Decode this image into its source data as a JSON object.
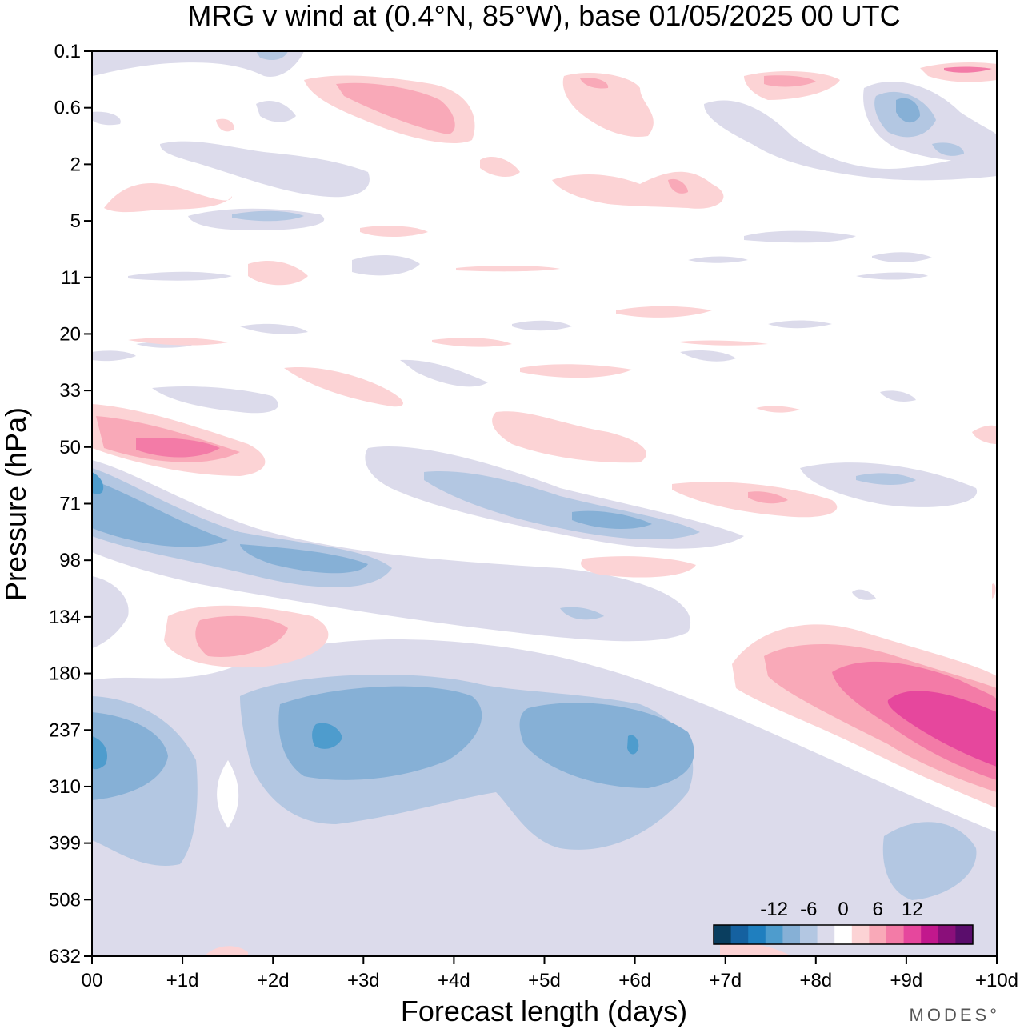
{
  "chart_data": {
    "type": "heatmap",
    "title": "MRG v wind at (0.4°N, 85°W),  base 01/05/2025  00 UTC",
    "xlabel": "Forecast length (days)",
    "ylabel": "Pressure (hPa)",
    "xlim": [
      0,
      10
    ],
    "x_ticks": [
      "00",
      "+1d",
      "+2d",
      "+3d",
      "+4d",
      "+5d",
      "+6d",
      "+7d",
      "+8d",
      "+9d",
      "+10d"
    ],
    "y_ticks": [
      "0.1",
      "0.6",
      "2",
      "5",
      "11",
      "20",
      "33",
      "50",
      "71",
      "98",
      "134",
      "180",
      "237",
      "310",
      "399",
      "508",
      "632"
    ],
    "colorbar": {
      "tick_labels": [
        "-12",
        "-6",
        "0",
        "6",
        "12"
      ],
      "colors": [
        "#0a3e5f",
        "#1561a0",
        "#1f7fbf",
        "#4e9ccd",
        "#86b0d6",
        "#b3c7e2",
        "#dcdbeb",
        "#ffffff",
        "#fcd3d5",
        "#f9a9b8",
        "#f37ba7",
        "#e6479d",
        "#c2188d",
        "#8a0f7a",
        "#5a0d6c"
      ]
    },
    "features": [
      {
        "sign": "negative",
        "peak": -12,
        "x": [
          0,
          0.8
        ],
        "pressure": "237"
      },
      {
        "sign": "negative",
        "peak": -12,
        "x": [
          2.4,
          3.4
        ],
        "pressure": "237"
      },
      {
        "sign": "negative",
        "peak": -12,
        "x": [
          5.8,
          6.1
        ],
        "pressure": "237"
      },
      {
        "sign": "negative",
        "peak": -10,
        "x": [
          0,
          3.1
        ],
        "pressure": "71-98"
      },
      {
        "sign": "negative",
        "peak": -8,
        "x": [
          4.3,
          6.2
        ],
        "pressure": "71"
      },
      {
        "sign": "negative",
        "peak": -10,
        "x": [
          8.7,
          9.2
        ],
        "pressure": "0.6"
      },
      {
        "sign": "positive",
        "peak": 10,
        "x": [
          0.4,
          1.7
        ],
        "pressure": "50"
      },
      {
        "sign": "positive",
        "peak": 6,
        "x": [
          1.2,
          2.2
        ],
        "pressure": "134"
      },
      {
        "sign": "positive",
        "peak": 12,
        "x": [
          8.4,
          10
        ],
        "pressure": "180-310"
      },
      {
        "sign": "positive",
        "peak": 6,
        "x": [
          2.7,
          4.1
        ],
        "pressure": "0.6"
      },
      {
        "sign": "positive",
        "peak": 6,
        "x": [
          7.1,
          8.2
        ],
        "pressure": "71"
      }
    ]
  },
  "brand": "MODES°"
}
